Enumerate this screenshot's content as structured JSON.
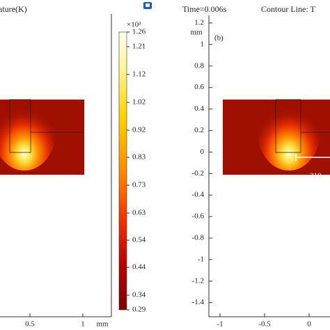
{
  "left_panel": {
    "title": "ature(K)",
    "x_ticks": [
      "0.5",
      "1"
    ],
    "x_unit": "mm",
    "colorbar": {
      "multiplier": "×10³",
      "ticks": [
        "1.26",
        "1.21",
        "1.12",
        "1.02",
        "0.92",
        "0.83",
        "0.73",
        "0.63",
        "0.54",
        "0.44",
        "0.34",
        "0.29"
      ]
    }
  },
  "right_panel": {
    "time": "Time=0.006s",
    "contour": "Contour Line: T",
    "panel_label": "(b)",
    "y_unit": "mm",
    "y_ticks": [
      "1.2",
      "1",
      "0.8",
      "0.6",
      "0.4",
      "0.2",
      "0",
      "-0.2",
      "-0.4",
      "-0.6",
      "-0.8",
      "-1",
      "-1.2",
      "-1.4"
    ],
    "x_ticks": [
      "-1",
      "-0.5",
      "0"
    ],
    "annotation": "210"
  }
}
